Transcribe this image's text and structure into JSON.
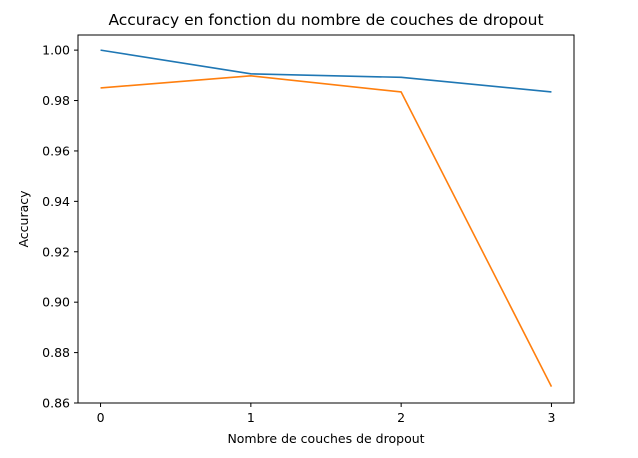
{
  "chart_data": {
    "type": "line",
    "title": "Accuracy en fonction du nombre de couches de dropout",
    "xlabel": "Nombre de couches de dropout",
    "ylabel": "Accuracy",
    "x": [
      0,
      1,
      2,
      3
    ],
    "xticks": [
      0,
      1,
      2,
      3
    ],
    "xlim": [
      -0.15,
      3.15
    ],
    "yticks": [
      0.86,
      0.88,
      0.9,
      0.92,
      0.94,
      0.96,
      0.98,
      1.0
    ],
    "ytick_labels": [
      "0.86",
      "0.88",
      "0.90",
      "0.92",
      "0.94",
      "0.96",
      "0.98",
      "1.00"
    ],
    "ylim": [
      0.86,
      1.006
    ],
    "grid": false,
    "legend": "none",
    "series": [
      {
        "values": [
          1.0,
          0.9906,
          0.9892,
          0.9834
        ],
        "color": "#1f77b4"
      },
      {
        "values": [
          0.985,
          0.9898,
          0.9834,
          0.8665
        ],
        "color": "#ff7f0e"
      }
    ]
  }
}
